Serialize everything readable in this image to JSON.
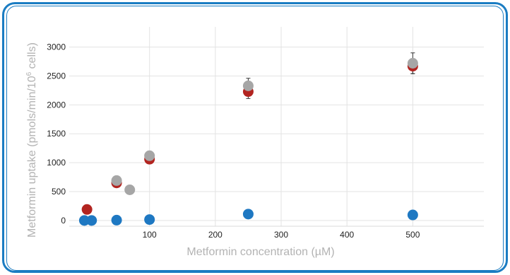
{
  "chart_data": {
    "type": "scatter",
    "xlabel": "Metformin concentration (µM)",
    "ylabel_main": "Metformin uptake (pmols/min/10",
    "ylabel_sup": "6",
    "ylabel_end": " cells)",
    "xlim": [
      -22,
      608
    ],
    "ylim": [
      -100,
      3350
    ],
    "x_ticks": [
      100,
      200,
      300,
      400,
      500
    ],
    "y_ticks": [
      0,
      500,
      1000,
      1500,
      2000,
      2500,
      3000
    ],
    "grid": true,
    "legend": "none",
    "series": [
      {
        "color": "#b22420",
        "points": [
          {
            "x": 5,
            "y": 190
          },
          {
            "x": 50,
            "y": 650
          },
          {
            "x": 100,
            "y": 1060
          },
          {
            "x": 250,
            "y": 2230,
            "err": 120
          },
          {
            "x": 500,
            "y": 2670,
            "err": 130
          }
        ]
      },
      {
        "color": "#a6a6a6",
        "points": [
          {
            "x": 50,
            "y": 690
          },
          {
            "x": 70,
            "y": 530
          },
          {
            "x": 100,
            "y": 1120
          },
          {
            "x": 250,
            "y": 2330,
            "err": 130
          },
          {
            "x": 500,
            "y": 2720,
            "err": 180
          }
        ]
      },
      {
        "color": "#1e78c2",
        "points": [
          {
            "x": 1,
            "y": 0
          },
          {
            "x": 12,
            "y": 0
          },
          {
            "x": 50,
            "y": 5
          },
          {
            "x": 100,
            "y": 15
          },
          {
            "x": 250,
            "y": 110
          },
          {
            "x": 500,
            "y": 95
          }
        ]
      }
    ]
  }
}
